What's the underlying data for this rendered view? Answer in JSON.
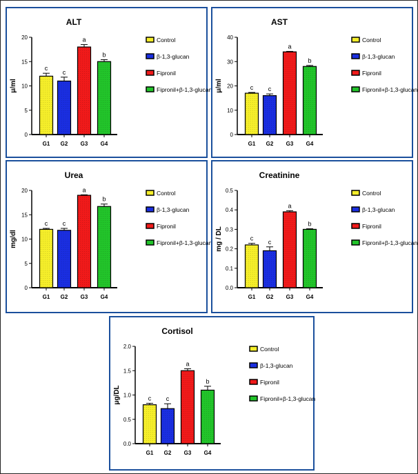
{
  "legend": [
    "Control",
    "β-1,3-glucan",
    "Fipronil",
    "Fipronil+β-1,3-glucan"
  ],
  "colors": [
    "#f5ee2a",
    "#1a2ee0",
    "#f01a1a",
    "#22c42a"
  ],
  "chart_data": [
    {
      "type": "bar",
      "title": "ALT",
      "ylabel": "μ/ml",
      "categories": [
        "G1",
        "G2",
        "G3",
        "G4"
      ],
      "values": [
        12,
        11,
        18,
        15
      ],
      "errors": [
        0.6,
        0.8,
        0.5,
        0.4
      ],
      "letters": [
        "c",
        "c",
        "a",
        "b"
      ],
      "ylim": [
        0,
        20
      ],
      "yticks": [
        "0",
        "5",
        "10",
        "15",
        "20"
      ],
      "legend_position": "right"
    },
    {
      "type": "bar",
      "title": "AST",
      "ylabel": "μ/ml",
      "categories": [
        "G1",
        "G2",
        "G3",
        "G4"
      ],
      "values": [
        17,
        16,
        34,
        28
      ],
      "errors": [
        0.3,
        0.7,
        0.2,
        0.4
      ],
      "letters": [
        "c",
        "c",
        "a",
        "b"
      ],
      "ylim": [
        0,
        40
      ],
      "yticks": [
        "0",
        "10",
        "20",
        "30",
        "40"
      ],
      "legend_position": "right"
    },
    {
      "type": "bar",
      "title": "Urea",
      "ylabel": "mg/dl",
      "categories": [
        "G1",
        "G2",
        "G3",
        "G4"
      ],
      "values": [
        12,
        11.8,
        19,
        16.7
      ],
      "errors": [
        0.2,
        0.4,
        0.1,
        0.5
      ],
      "letters": [
        "c",
        "c",
        "a",
        "b"
      ],
      "ylim": [
        0,
        20
      ],
      "yticks": [
        "0",
        "5",
        "10",
        "15",
        "20"
      ],
      "legend_position": "right"
    },
    {
      "type": "bar",
      "title": "Creatinine",
      "ylabel": "mg / DL",
      "categories": [
        "G1",
        "G2",
        "G3",
        "G4"
      ],
      "values": [
        0.22,
        0.19,
        0.39,
        0.3
      ],
      "errors": [
        0.008,
        0.02,
        0.006,
        0.003
      ],
      "letters": [
        "c",
        "c",
        "a",
        "b"
      ],
      "ylim": [
        0,
        0.5
      ],
      "yticks": [
        "0.0",
        "0.1",
        "0.2",
        "0.3",
        "0.4",
        "0.5"
      ],
      "legend_position": "right"
    },
    {
      "type": "bar",
      "title": "Cortisol",
      "ylabel": "μg/DL",
      "categories": [
        "G1",
        "G2",
        "G3",
        "G4"
      ],
      "values": [
        0.8,
        0.72,
        1.5,
        1.1
      ],
      "errors": [
        0.03,
        0.1,
        0.04,
        0.08
      ],
      "letters": [
        "c",
        "c",
        "a",
        "b"
      ],
      "ylim": [
        0,
        2.0
      ],
      "yticks": [
        "0.0",
        "0.5",
        "1.0",
        "1.5",
        "2.0"
      ],
      "legend_position": "right"
    }
  ]
}
